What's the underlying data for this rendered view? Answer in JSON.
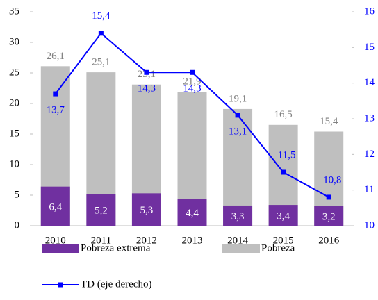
{
  "chart_data": {
    "type": "bar_line",
    "categories": [
      "2010",
      "2011",
      "2012",
      "2013",
      "2014",
      "2015",
      "2016"
    ],
    "series": [
      {
        "name": "Pobreza",
        "type": "bar",
        "color": "#bfbfbf",
        "values": [
          26.1,
          25.1,
          23.1,
          21.9,
          19.1,
          16.5,
          15.4
        ],
        "value_labels": [
          "26,1",
          "25,1",
          "23,1",
          "21,9",
          "19,1",
          "16,5",
          "15,4"
        ]
      },
      {
        "name": "Pobreza extrema",
        "type": "bar",
        "color": "#7030a0",
        "values": [
          6.4,
          5.2,
          5.3,
          4.4,
          3.3,
          3.4,
          3.2
        ],
        "value_labels": [
          "6,4",
          "5,2",
          "5,3",
          "4,4",
          "3,3",
          "3,4",
          "3,2"
        ]
      },
      {
        "name": "TD (eje derecho)",
        "type": "line",
        "axis": "y2",
        "color": "#0000ff",
        "values": [
          13.7,
          15.4,
          14.3,
          14.3,
          13.1,
          11.5,
          10.8
        ],
        "value_labels": [
          "13,7",
          "15,4",
          "14,3",
          "14,3",
          "13,1",
          "11,5",
          "10,8"
        ]
      }
    ],
    "ylim": [
      0,
      35
    ],
    "yticks": [
      0,
      5,
      10,
      15,
      20,
      25,
      30,
      35
    ],
    "y2lim": [
      10,
      16
    ],
    "y2ticks": [
      10,
      11,
      12,
      13,
      14,
      15,
      16
    ],
    "grid": false
  }
}
